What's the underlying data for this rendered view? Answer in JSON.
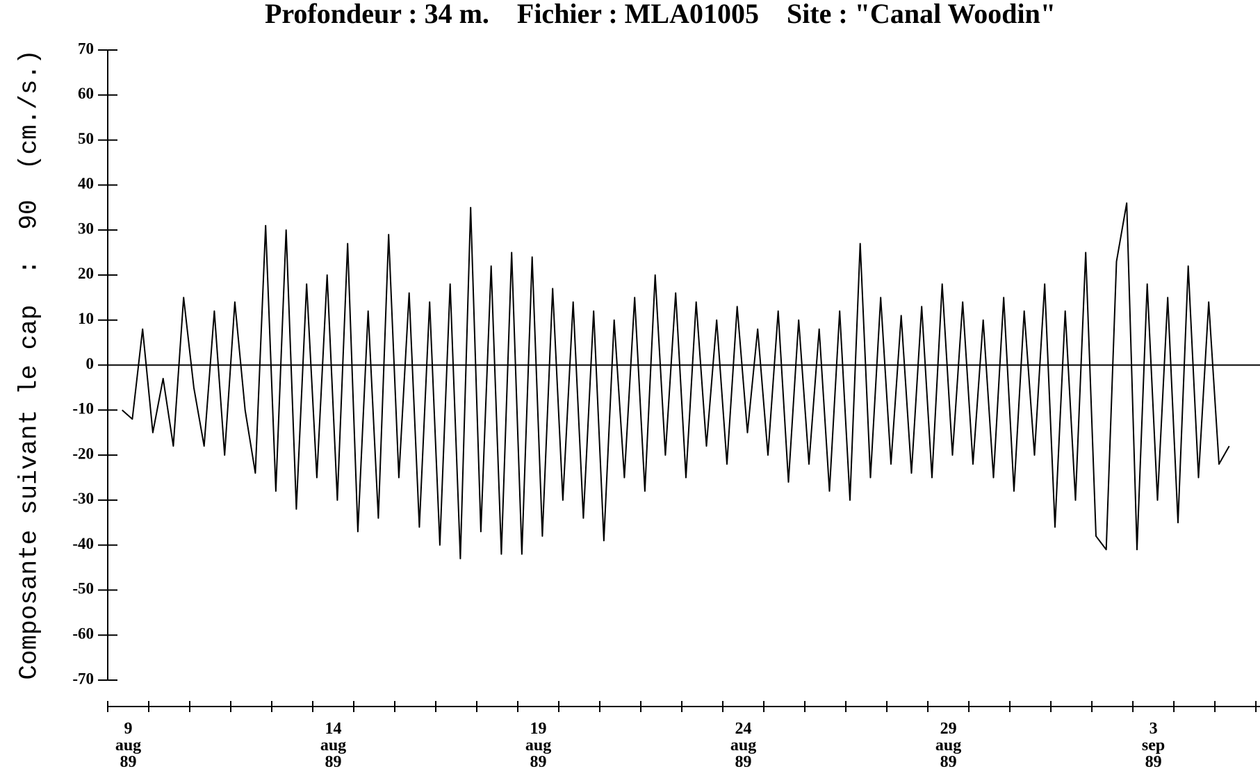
{
  "chart_data": {
    "type": "line",
    "title": "Profondeur : 34 m.    Fichier : MLA01005    Site : \"Canal Woodin\"",
    "y_label": "Composante suivant le cap  :  90  (cm./s.)",
    "color": "#000000",
    "xlim": [
      0,
      28.1
    ],
    "ylim": [
      -70,
      70
    ],
    "yticks": [
      -70,
      -60,
      -50,
      -40,
      -30,
      -20,
      -10,
      0,
      10,
      20,
      30,
      40,
      50,
      60,
      70
    ],
    "xticks": [
      {
        "value": 0.5,
        "label": "9 aug 89"
      },
      {
        "value": 5.5,
        "label": "14 aug 89"
      },
      {
        "value": 10.5,
        "label": "19 aug 89"
      },
      {
        "value": 15.5,
        "label": "24 aug 89"
      },
      {
        "value": 20.5,
        "label": "29 aug 89"
      },
      {
        "value": 25.5,
        "label": "3 sep 89"
      }
    ],
    "x": [
      0.35,
      0.6,
      0.85,
      1.1,
      1.35,
      1.6,
      1.85,
      2.1,
      2.35,
      2.6,
      2.85,
      3.1,
      3.35,
      3.6,
      3.85,
      4.1,
      4.35,
      4.6,
      4.85,
      5.1,
      5.35,
      5.6,
      5.85,
      6.1,
      6.35,
      6.6,
      6.85,
      7.1,
      7.35,
      7.6,
      7.85,
      8.1,
      8.35,
      8.6,
      8.85,
      9.1,
      9.35,
      9.6,
      9.85,
      10.1,
      10.35,
      10.6,
      10.85,
      11.1,
      11.35,
      11.6,
      11.85,
      12.1,
      12.35,
      12.6,
      12.85,
      13.1,
      13.35,
      13.6,
      13.85,
      14.1,
      14.35,
      14.6,
      14.85,
      15.1,
      15.35,
      15.6,
      15.85,
      16.1,
      16.35,
      16.6,
      16.85,
      17.1,
      17.35,
      17.6,
      17.85,
      18.1,
      18.35,
      18.6,
      18.85,
      19.1,
      19.35,
      19.6,
      19.85,
      20.1,
      20.35,
      20.6,
      20.85,
      21.1,
      21.35,
      21.6,
      21.85,
      22.1,
      22.35,
      22.6,
      22.85,
      23.1,
      23.35,
      23.6,
      23.85,
      24.1,
      24.35,
      24.6,
      24.85,
      25.1,
      25.35,
      25.6,
      25.85,
      26.1,
      26.35,
      26.6,
      26.85,
      27.1,
      27.35
    ],
    "values": [
      -10,
      -12,
      8,
      -15,
      -3,
      -18,
      15,
      -5,
      -18,
      12,
      -20,
      14,
      -10,
      -24,
      31,
      -28,
      30,
      -32,
      18,
      -25,
      20,
      -30,
      27,
      -37,
      12,
      -34,
      29,
      -25,
      16,
      -36,
      14,
      -40,
      18,
      -43,
      35,
      -37,
      22,
      -42,
      25,
      -42,
      24,
      -38,
      17,
      -30,
      14,
      -34,
      12,
      -39,
      10,
      -25,
      15,
      -28,
      20,
      -20,
      16,
      -25,
      14,
      -18,
      10,
      -22,
      13,
      -15,
      8,
      -20,
      12,
      -26,
      10,
      -22,
      8,
      -28,
      12,
      -30,
      27,
      -25,
      15,
      -22,
      11,
      -24,
      13,
      -25,
      18,
      -20,
      14,
      -22,
      10,
      -25,
      15,
      -28,
      12,
      -20,
      18,
      -36,
      12,
      -30,
      25,
      -38,
      -41,
      23,
      36,
      -41,
      18,
      -30,
      15,
      -35,
      22,
      -25,
      14,
      -22,
      -18
    ]
  }
}
